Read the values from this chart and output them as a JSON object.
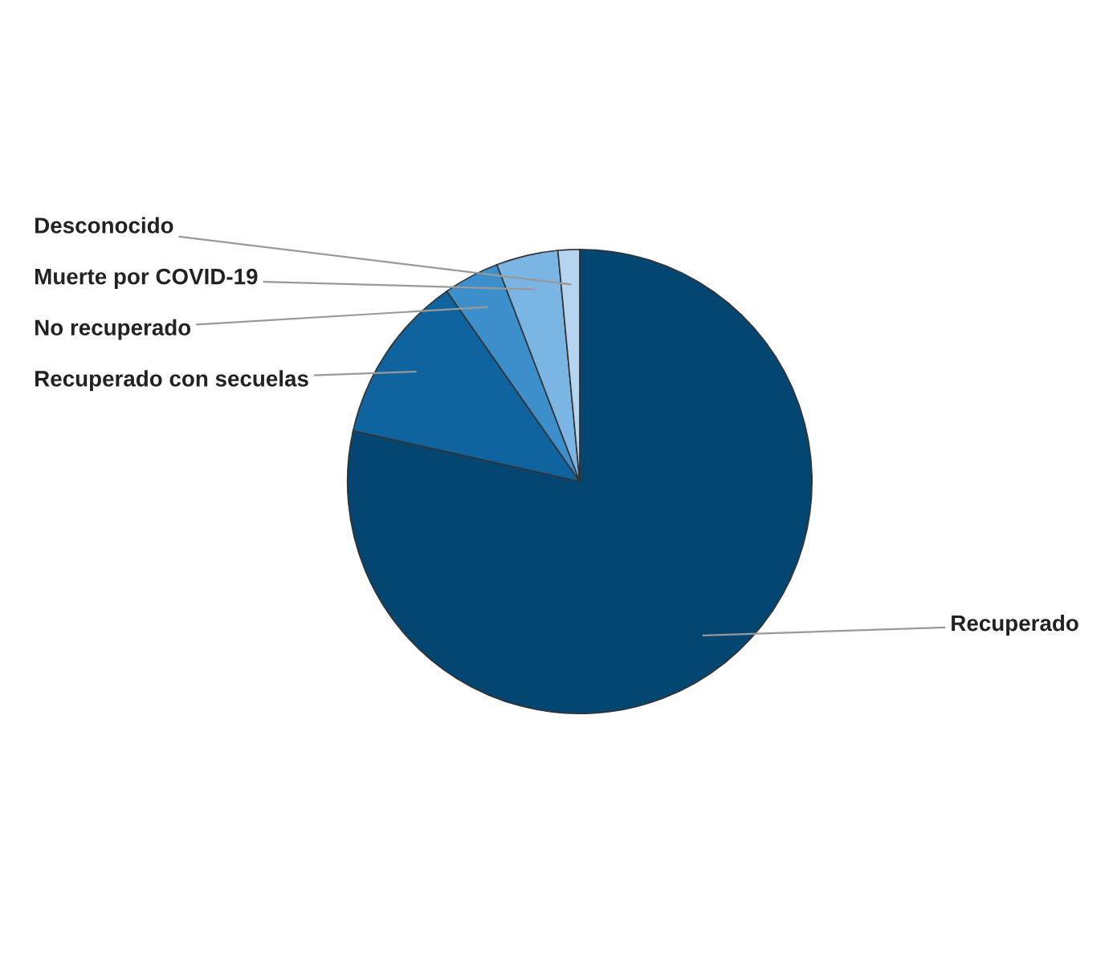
{
  "chart_data": {
    "type": "pie",
    "categories": [
      "Recuperado",
      "Recuperado con secuelas",
      "No recuperado",
      "Muerte por COVID-19",
      "Desconocido"
    ],
    "values": [
      78.5,
      11.8,
      3.9,
      4.3,
      1.5
    ],
    "colors": [
      "#034672",
      "#0f64a0",
      "#3d8fcc",
      "#7ab5e3",
      "#b5d4ef"
    ],
    "legend": false
  }
}
